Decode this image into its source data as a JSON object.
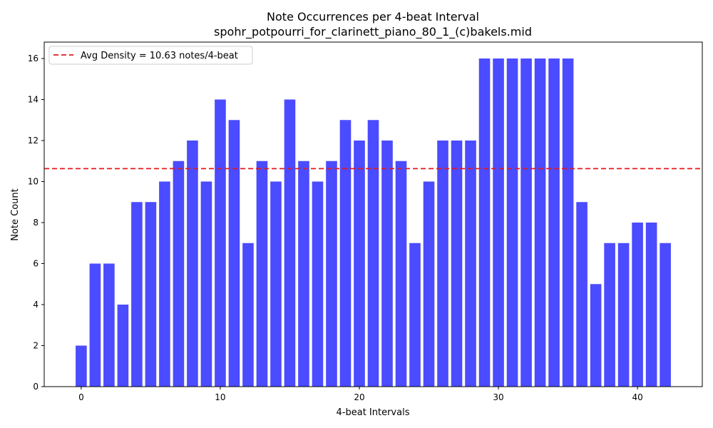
{
  "chart_data": {
    "type": "bar",
    "title": "Note Occurrences per 4-beat Interval",
    "subtitle": "spohr_potpourri_for_clarinett_piano_80_1_(c)bakels.mid",
    "xlabel": "4-beat Intervals",
    "ylabel": "Note Count",
    "xlim": [
      -2.66,
      44.66
    ],
    "ylim": [
      0,
      16.8
    ],
    "xticks": [
      0,
      10,
      20,
      30,
      40
    ],
    "yticks": [
      0,
      2,
      4,
      6,
      8,
      10,
      12,
      14,
      16
    ],
    "x": [
      0,
      1,
      2,
      3,
      4,
      5,
      6,
      7,
      8,
      9,
      10,
      11,
      12,
      13,
      14,
      15,
      16,
      17,
      18,
      19,
      20,
      21,
      22,
      23,
      24,
      25,
      26,
      27,
      28,
      29,
      30,
      31,
      32,
      33,
      34,
      35,
      36,
      37,
      38,
      39,
      40,
      41,
      42
    ],
    "values": [
      2,
      6,
      6,
      4,
      9,
      9,
      10,
      11,
      12,
      10,
      14,
      13,
      7,
      11,
      10,
      14,
      11,
      10,
      11,
      13,
      12,
      13,
      12,
      11,
      7,
      10,
      12,
      12,
      12,
      16,
      16,
      16,
      16,
      16,
      16,
      16,
      9,
      5,
      7,
      7,
      8,
      8,
      7
    ],
    "bar_color": "#4b4bff",
    "average_line": {
      "value": 10.63,
      "label": "Avg Density = 10.63 notes/4-beat",
      "color": "#e31a1c",
      "style": "dashed"
    },
    "legend_position": "upper-left",
    "grid": false
  }
}
